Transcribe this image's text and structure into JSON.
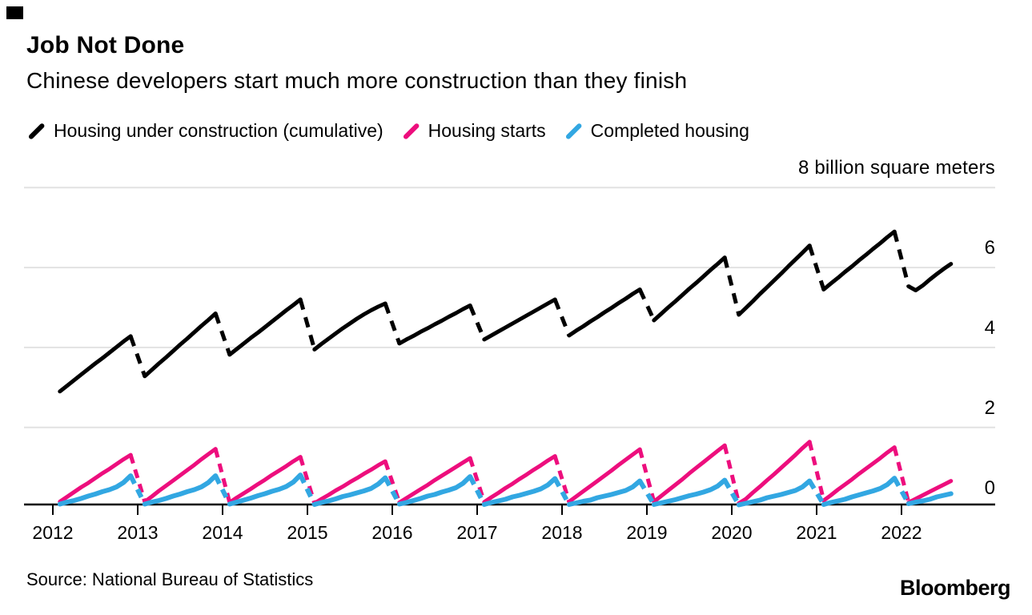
{
  "branding": {
    "logo_text": "Bloomberg",
    "corner_mark_color": "#000000"
  },
  "header": {
    "title": "Job Not Done",
    "subtitle": "Chinese developers start much more construction than they finish"
  },
  "legend": {
    "items": [
      {
        "label": "Housing under construction (cumulative)",
        "color": "#000000"
      },
      {
        "label": "Housing starts",
        "color": "#ed0e7d"
      },
      {
        "label": "Completed housing",
        "color": "#32a7e2"
      }
    ]
  },
  "source_note": "Source: National Bureau of Statistics",
  "chart_data": {
    "type": "line",
    "title": "Job Not Done",
    "unit_label": "8 billion square meters",
    "xlabel": "",
    "ylabel": "billion square meters",
    "y_axis": {
      "min": 0,
      "max": 8,
      "side": "right",
      "grid": true,
      "gridline_values": [
        8,
        6,
        4,
        2
      ],
      "tick_values": [
        6,
        4,
        2,
        0
      ],
      "tick_labels": [
        "6",
        "4",
        "2",
        "0"
      ]
    },
    "x_axis": {
      "tick_years": [
        2012,
        2013,
        2014,
        2015,
        2016,
        2017,
        2018,
        2019,
        2020,
        2021,
        2022
      ],
      "labels": [
        "2012",
        "2013",
        "2014",
        "2015",
        "2016",
        "2017",
        "2018",
        "2019",
        "2020",
        "2021",
        "2022"
      ]
    },
    "style": {
      "dashed_year_transitions": true,
      "note": "Dec-to-Feb gaps drawn dashed (no Jan data)"
    },
    "series": [
      {
        "name": "Housing under construction (cumulative)",
        "color": "#000000",
        "stroke_width": 5,
        "dash": "13 10",
        "years": [
          {
            "year": 2012,
            "start_month": 2,
            "values": [
              2.9,
              3.04,
              3.18,
              3.32,
              3.46,
              3.6,
              3.73,
              3.87,
              4.01,
              4.15,
              4.28
            ]
          },
          {
            "year": 2013,
            "start_month": 2,
            "values": [
              3.28,
              3.44,
              3.6,
              3.75,
              3.91,
              4.07,
              4.22,
              4.38,
              4.54,
              4.69,
              4.85
            ]
          },
          {
            "year": 2014,
            "start_month": 2,
            "values": [
              3.82,
              3.96,
              4.1,
              4.24,
              4.37,
              4.51,
              4.65,
              4.79,
              4.93,
              5.06,
              5.2
            ]
          },
          {
            "year": 2015,
            "start_month": 2,
            "values": [
              3.95,
              4.09,
              4.22,
              4.35,
              4.48,
              4.6,
              4.72,
              4.83,
              4.93,
              5.02,
              5.1
            ]
          },
          {
            "year": 2016,
            "start_month": 2,
            "values": [
              4.1,
              4.2,
              4.29,
              4.39,
              4.48,
              4.58,
              4.67,
              4.77,
              4.86,
              4.96,
              5.05
            ]
          },
          {
            "year": 2017,
            "start_month": 2,
            "values": [
              4.2,
              4.3,
              4.4,
              4.5,
              4.6,
              4.7,
              4.8,
              4.9,
              5.0,
              5.1,
              5.2
            ]
          },
          {
            "year": 2018,
            "start_month": 2,
            "values": [
              4.3,
              4.42,
              4.53,
              4.65,
              4.76,
              4.88,
              4.99,
              5.11,
              5.22,
              5.34,
              5.45
            ]
          },
          {
            "year": 2019,
            "start_month": 2,
            "values": [
              4.68,
              4.84,
              5.0,
              5.15,
              5.31,
              5.47,
              5.62,
              5.78,
              5.94,
              6.09,
              6.25
            ]
          },
          {
            "year": 2020,
            "start_month": 2,
            "values": [
              4.82,
              4.99,
              5.16,
              5.34,
              5.51,
              5.68,
              5.85,
              6.03,
              6.2,
              6.37,
              6.55
            ]
          },
          {
            "year": 2021,
            "start_month": 2,
            "values": [
              5.45,
              5.6,
              5.74,
              5.89,
              6.03,
              6.18,
              6.32,
              6.47,
              6.61,
              6.76,
              6.9
            ]
          },
          {
            "year": 2022,
            "start_month": 2,
            "values": [
              5.53,
              5.43,
              5.55,
              5.7,
              5.84,
              5.97,
              6.09
            ]
          }
        ]
      },
      {
        "name": "Housing starts",
        "color": "#ed0e7d",
        "stroke_width": 5,
        "dash": "11 8",
        "years": [
          {
            "year": 2012,
            "start_month": 2,
            "values": [
              0.14,
              0.26,
              0.38,
              0.5,
              0.61,
              0.73,
              0.85,
              0.96,
              1.08,
              1.2,
              1.31
            ]
          },
          {
            "year": 2013,
            "start_month": 2,
            "values": [
              0.14,
              0.27,
              0.41,
              0.54,
              0.67,
              0.8,
              0.93,
              1.06,
              1.2,
              1.33,
              1.46
            ]
          },
          {
            "year": 2014,
            "start_month": 2,
            "values": [
              0.12,
              0.24,
              0.35,
              0.46,
              0.58,
              0.69,
              0.81,
              0.92,
              1.03,
              1.15,
              1.26
            ]
          },
          {
            "year": 2015,
            "start_month": 2,
            "values": [
              0.1,
              0.21,
              0.31,
              0.42,
              0.52,
              0.63,
              0.73,
              0.84,
              0.94,
              1.05,
              1.15
            ]
          },
          {
            "year": 2016,
            "start_month": 2,
            "values": [
              0.12,
              0.23,
              0.34,
              0.45,
              0.56,
              0.68,
              0.79,
              0.9,
              1.01,
              1.12,
              1.23
            ]
          },
          {
            "year": 2017,
            "start_month": 2,
            "values": [
              0.13,
              0.25,
              0.36,
              0.48,
              0.59,
              0.71,
              0.82,
              0.94,
              1.05,
              1.17,
              1.28
            ]
          },
          {
            "year": 2018,
            "start_month": 2,
            "values": [
              0.14,
              0.27,
              0.4,
              0.53,
              0.66,
              0.79,
              0.92,
              1.06,
              1.19,
              1.32,
              1.45
            ]
          },
          {
            "year": 2019,
            "start_month": 2,
            "values": [
              0.14,
              0.28,
              0.42,
              0.56,
              0.7,
              0.85,
              0.99,
              1.13,
              1.27,
              1.41,
              1.55
            ]
          },
          {
            "year": 2020,
            "start_month": 2,
            "values": [
              0.1,
              0.21,
              0.37,
              0.52,
              0.68,
              0.83,
              0.99,
              1.15,
              1.31,
              1.48,
              1.64
            ]
          },
          {
            "year": 2021,
            "start_month": 2,
            "values": [
              0.17,
              0.3,
              0.44,
              0.57,
              0.7,
              0.84,
              0.97,
              1.1,
              1.23,
              1.37,
              1.5
            ]
          },
          {
            "year": 2022,
            "start_month": 2,
            "values": [
              0.12,
              0.21,
              0.3,
              0.39,
              0.48,
              0.57,
              0.66
            ]
          }
        ]
      },
      {
        "name": "Completed housing",
        "color": "#32a7e2",
        "stroke_width": 6,
        "dash": "11 8",
        "years": [
          {
            "year": 2012,
            "start_month": 2,
            "values": [
              0.08,
              0.13,
              0.17,
              0.22,
              0.28,
              0.33,
              0.39,
              0.44,
              0.51,
              0.62,
              0.79
            ]
          },
          {
            "year": 2013,
            "start_month": 2,
            "values": [
              0.08,
              0.13,
              0.17,
              0.22,
              0.28,
              0.33,
              0.39,
              0.44,
              0.51,
              0.62,
              0.79
            ]
          },
          {
            "year": 2014,
            "start_month": 2,
            "values": [
              0.08,
              0.13,
              0.18,
              0.23,
              0.29,
              0.34,
              0.4,
              0.45,
              0.52,
              0.63,
              0.81
            ]
          },
          {
            "year": 2015,
            "start_month": 2,
            "values": [
              0.07,
              0.12,
              0.16,
              0.21,
              0.27,
              0.31,
              0.36,
              0.41,
              0.47,
              0.58,
              0.74
            ]
          },
          {
            "year": 2016,
            "start_month": 2,
            "values": [
              0.08,
              0.12,
              0.17,
              0.22,
              0.28,
              0.32,
              0.38,
              0.43,
              0.49,
              0.6,
              0.77
            ]
          },
          {
            "year": 2017,
            "start_month": 2,
            "values": [
              0.07,
              0.12,
              0.16,
              0.2,
              0.26,
              0.3,
              0.35,
              0.4,
              0.46,
              0.56,
              0.72
            ]
          },
          {
            "year": 2018,
            "start_month": 2,
            "values": [
              0.07,
              0.11,
              0.15,
              0.18,
              0.24,
              0.28,
              0.32,
              0.37,
              0.42,
              0.51,
              0.66
            ]
          },
          {
            "year": 2019,
            "start_month": 2,
            "values": [
              0.07,
              0.11,
              0.15,
              0.19,
              0.24,
              0.29,
              0.33,
              0.38,
              0.44,
              0.53,
              0.68
            ]
          },
          {
            "year": 2020,
            "start_month": 2,
            "values": [
              0.06,
              0.1,
              0.14,
              0.18,
              0.24,
              0.28,
              0.32,
              0.37,
              0.42,
              0.51,
              0.66
            ]
          },
          {
            "year": 2021,
            "start_month": 2,
            "values": [
              0.07,
              0.12,
              0.16,
              0.2,
              0.26,
              0.31,
              0.36,
              0.41,
              0.47,
              0.57,
              0.73
            ]
          },
          {
            "year": 2022,
            "start_month": 2,
            "values": [
              0.09,
              0.13,
              0.16,
              0.2,
              0.26,
              0.3,
              0.34
            ]
          }
        ]
      }
    ]
  }
}
